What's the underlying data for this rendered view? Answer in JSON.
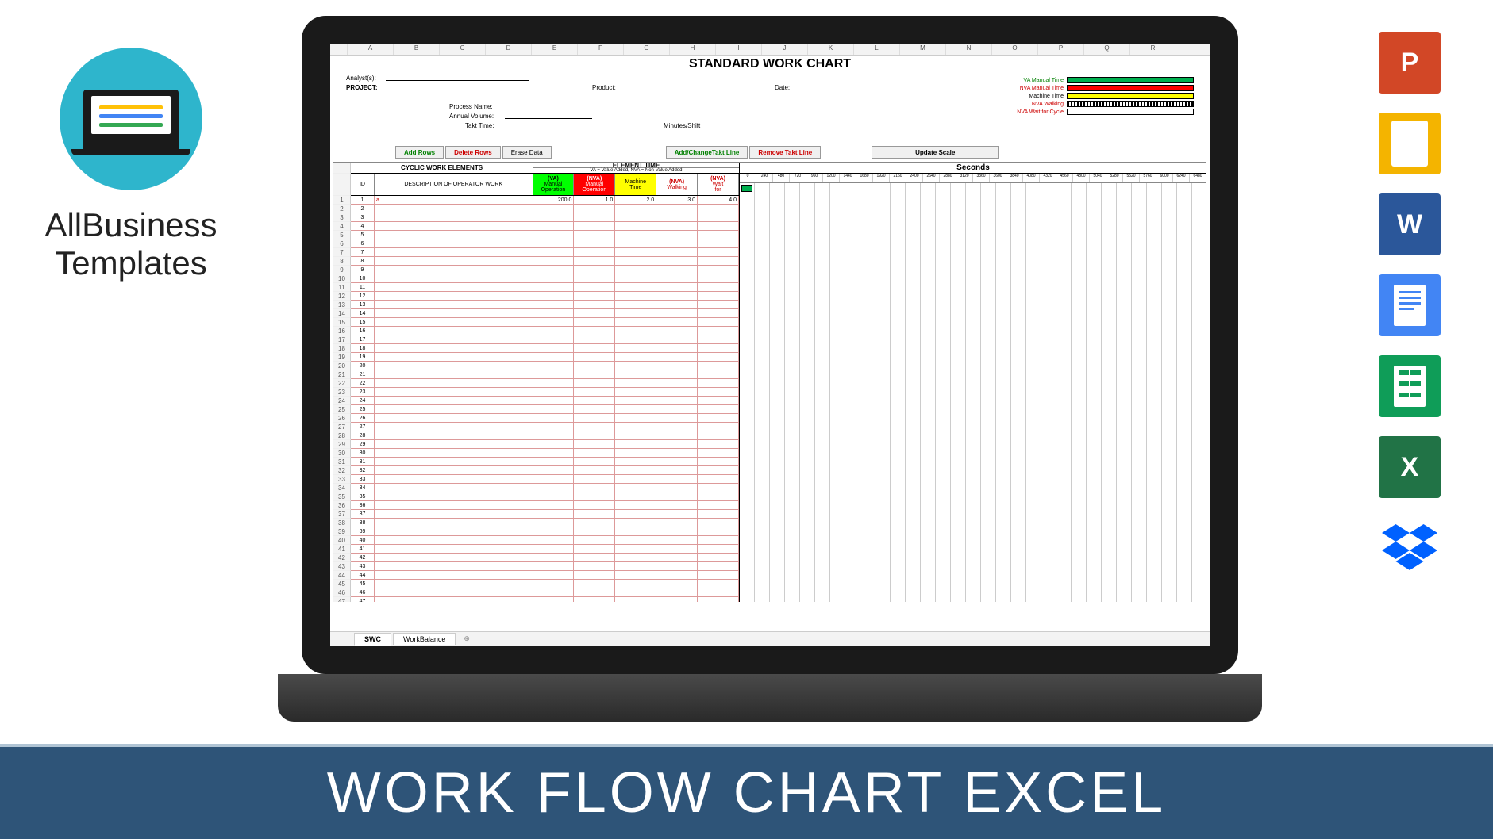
{
  "logo": {
    "line1": "AllBusiness",
    "line2": "Templates"
  },
  "banner": "WORK FLOW CHART EXCEL",
  "apps": [
    {
      "name": "powerpoint",
      "label": "P",
      "bg": "#d24726"
    },
    {
      "name": "slides",
      "label": "",
      "bg": "#f4b400"
    },
    {
      "name": "word",
      "label": "W",
      "bg": "#2b579a"
    },
    {
      "name": "docs",
      "label": "",
      "bg": "#4285f4"
    },
    {
      "name": "sheets",
      "label": "",
      "bg": "#0f9d58"
    },
    {
      "name": "excel",
      "label": "X",
      "bg": "#217346"
    },
    {
      "name": "dropbox",
      "label": "",
      "bg": "#0061ff"
    }
  ],
  "sheet": {
    "title": "STANDARD WORK CHART",
    "columns": [
      "A",
      "B",
      "C",
      "D",
      "E",
      "F",
      "G",
      "H",
      "I",
      "J",
      "K",
      "L",
      "M",
      "N",
      "O",
      "P",
      "Q",
      "R"
    ],
    "header_labels": {
      "analyst": "Analyst(s):",
      "project": "PROJECT:",
      "process": "Process Name:",
      "volume": "Annual Volume:",
      "takt": "Takt Time:",
      "product": "Product:",
      "date": "Date:",
      "minshift": "Minutes/Shift"
    },
    "legend": [
      {
        "label": "VA Manual Time",
        "color": "#00b050",
        "text_color": "#008000"
      },
      {
        "label": "NVA Manual Time",
        "color": "#ff0000",
        "text_color": "#cc0000"
      },
      {
        "label": "Machine Time",
        "color": "#ffff00",
        "text_color": "#000"
      },
      {
        "label": "NVA Walking",
        "color": "repeating-linear-gradient(90deg,#000,#000 2px,#fff 2px,#fff 4px)",
        "text_color": "#cc0000"
      },
      {
        "label": "NVA Wait for Cycle",
        "color": "#fff",
        "text_color": "#cc0000"
      }
    ],
    "buttons": {
      "add_rows": "Add Rows",
      "delete_rows": "Delete Rows",
      "erase_data": "Erase Data",
      "takt_line": "Add/ChangeTakt Line",
      "remove_takt": "Remove Takt Line",
      "update_scale": "Update Scale"
    },
    "sections": {
      "cyclic": "CYCLIC WORK ELEMENTS",
      "element_time": "ELEMENT TIME",
      "va_note": "VA = Value Added, NVA = Non-Value Added",
      "seconds": "Seconds"
    },
    "col_headers": {
      "id": "ID",
      "desc": "DESCRIPTION OF OPERATOR WORK",
      "va": "(VA)",
      "va2": "Manual",
      "va3": "Operation",
      "nva": "(NVA)",
      "nva2": "Manual",
      "nva3": "Operation",
      "mach": "Machine",
      "mach2": "Time",
      "walk": "(NVA)",
      "walk2": "Walking",
      "wait": "(NVA)",
      "wait2": "Wait",
      "wait3": "for"
    },
    "data_row": {
      "id": "1",
      "desc": "a",
      "va": "200.0",
      "nva": "1.0",
      "mach": "2.0",
      "walk": "3.0",
      "wait": "4.0"
    },
    "row_count": 48,
    "gantt_ticks": [
      "0",
      "240",
      "480",
      "720",
      "960",
      "1200",
      "1440",
      "1680",
      "1920",
      "2160",
      "2400",
      "2640",
      "2880",
      "3120",
      "3360",
      "3600",
      "3840",
      "4080",
      "4320",
      "4560",
      "4800",
      "5040",
      "5280",
      "5520",
      "5760",
      "6000",
      "6240",
      "6480"
    ],
    "tabs": [
      "SWC",
      "WorkBalance"
    ],
    "active_tab": "SWC",
    "add_tab": "⊕"
  }
}
